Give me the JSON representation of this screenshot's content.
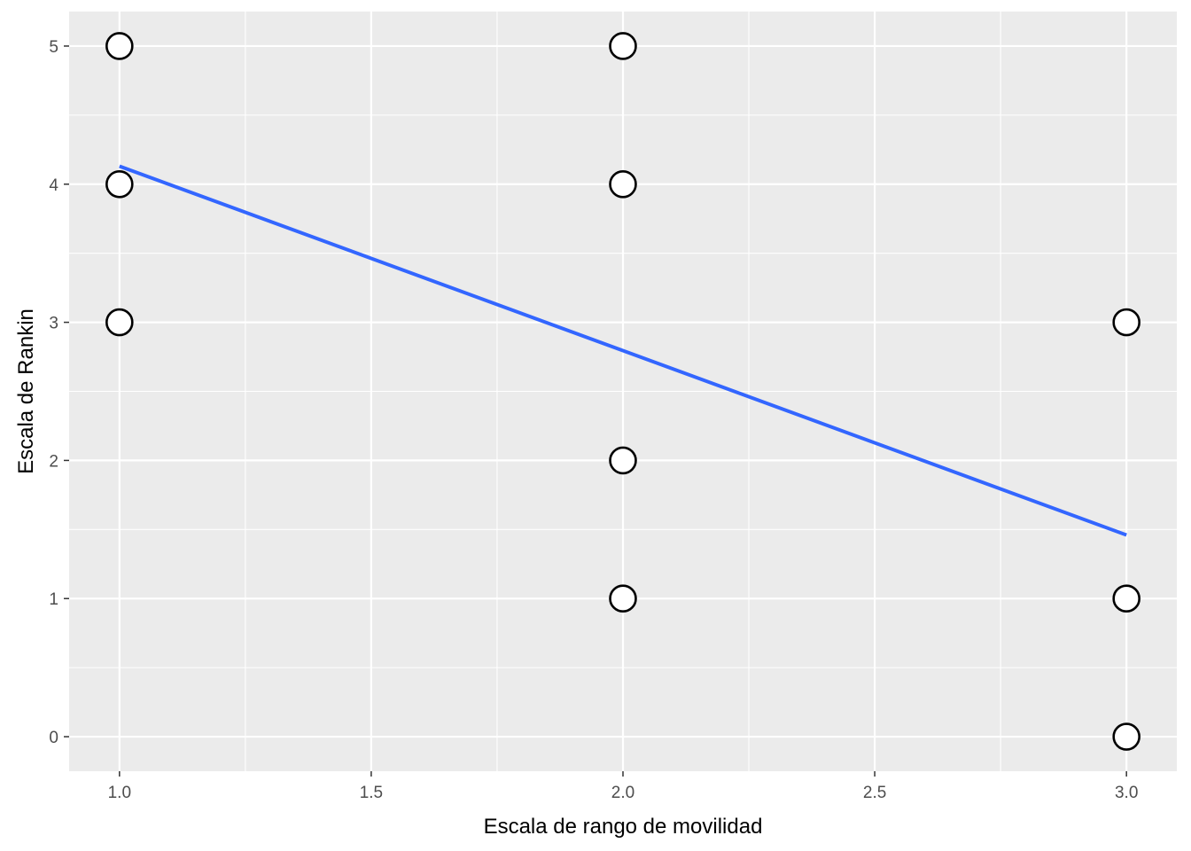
{
  "chart_data": {
    "type": "scatter",
    "title": "",
    "xlabel": "Escala de rango de movilidad",
    "ylabel": "Escala de Rankin",
    "xlim": [
      0.9,
      3.1
    ],
    "ylim": [
      -0.25,
      5.25
    ],
    "x_ticks": [
      1.0,
      1.5,
      2.0,
      2.5,
      3.0
    ],
    "x_tick_labels": [
      "1.0",
      "1.5",
      "2.0",
      "2.5",
      "3.0"
    ],
    "y_ticks": [
      0,
      1,
      2,
      3,
      4,
      5
    ],
    "y_tick_labels": [
      "0",
      "1",
      "2",
      "3",
      "4",
      "5"
    ],
    "grid": true,
    "panel_background": "#ebebeb",
    "grid_color": "#ffffff",
    "points": {
      "x": [
        1,
        1,
        1,
        2,
        2,
        2,
        2,
        3,
        3,
        3
      ],
      "y": [
        5,
        4,
        3,
        5,
        4,
        2,
        1,
        3,
        1,
        0
      ],
      "fill": "#ffffff",
      "stroke": "#000000"
    },
    "trend_line": {
      "x": [
        1,
        3
      ],
      "y": [
        4.13,
        1.46
      ],
      "color": "#3366ff"
    }
  }
}
